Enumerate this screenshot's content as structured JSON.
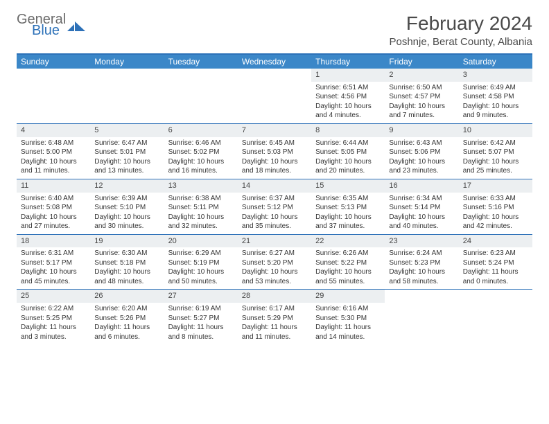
{
  "brand": {
    "general": "General",
    "blue": "Blue"
  },
  "title": "February 2024",
  "location": "Poshnje, Berat County, Albania",
  "colors": {
    "header_bar": "#3b87c8",
    "accent": "#2d71b8",
    "daynum_bg": "#eceff1",
    "text": "#333333",
    "title_text": "#4a4a4a",
    "logo_gray": "#6b6b6b"
  },
  "dow": [
    "Sunday",
    "Monday",
    "Tuesday",
    "Wednesday",
    "Thursday",
    "Friday",
    "Saturday"
  ],
  "weeks": [
    [
      null,
      null,
      null,
      null,
      {
        "d": "1",
        "sr": "Sunrise: 6:51 AM",
        "ss": "Sunset: 4:56 PM",
        "dl1": "Daylight: 10 hours",
        "dl2": "and 4 minutes."
      },
      {
        "d": "2",
        "sr": "Sunrise: 6:50 AM",
        "ss": "Sunset: 4:57 PM",
        "dl1": "Daylight: 10 hours",
        "dl2": "and 7 minutes."
      },
      {
        "d": "3",
        "sr": "Sunrise: 6:49 AM",
        "ss": "Sunset: 4:58 PM",
        "dl1": "Daylight: 10 hours",
        "dl2": "and 9 minutes."
      }
    ],
    [
      {
        "d": "4",
        "sr": "Sunrise: 6:48 AM",
        "ss": "Sunset: 5:00 PM",
        "dl1": "Daylight: 10 hours",
        "dl2": "and 11 minutes."
      },
      {
        "d": "5",
        "sr": "Sunrise: 6:47 AM",
        "ss": "Sunset: 5:01 PM",
        "dl1": "Daylight: 10 hours",
        "dl2": "and 13 minutes."
      },
      {
        "d": "6",
        "sr": "Sunrise: 6:46 AM",
        "ss": "Sunset: 5:02 PM",
        "dl1": "Daylight: 10 hours",
        "dl2": "and 16 minutes."
      },
      {
        "d": "7",
        "sr": "Sunrise: 6:45 AM",
        "ss": "Sunset: 5:03 PM",
        "dl1": "Daylight: 10 hours",
        "dl2": "and 18 minutes."
      },
      {
        "d": "8",
        "sr": "Sunrise: 6:44 AM",
        "ss": "Sunset: 5:05 PM",
        "dl1": "Daylight: 10 hours",
        "dl2": "and 20 minutes."
      },
      {
        "d": "9",
        "sr": "Sunrise: 6:43 AM",
        "ss": "Sunset: 5:06 PM",
        "dl1": "Daylight: 10 hours",
        "dl2": "and 23 minutes."
      },
      {
        "d": "10",
        "sr": "Sunrise: 6:42 AM",
        "ss": "Sunset: 5:07 PM",
        "dl1": "Daylight: 10 hours",
        "dl2": "and 25 minutes."
      }
    ],
    [
      {
        "d": "11",
        "sr": "Sunrise: 6:40 AM",
        "ss": "Sunset: 5:08 PM",
        "dl1": "Daylight: 10 hours",
        "dl2": "and 27 minutes."
      },
      {
        "d": "12",
        "sr": "Sunrise: 6:39 AM",
        "ss": "Sunset: 5:10 PM",
        "dl1": "Daylight: 10 hours",
        "dl2": "and 30 minutes."
      },
      {
        "d": "13",
        "sr": "Sunrise: 6:38 AM",
        "ss": "Sunset: 5:11 PM",
        "dl1": "Daylight: 10 hours",
        "dl2": "and 32 minutes."
      },
      {
        "d": "14",
        "sr": "Sunrise: 6:37 AM",
        "ss": "Sunset: 5:12 PM",
        "dl1": "Daylight: 10 hours",
        "dl2": "and 35 minutes."
      },
      {
        "d": "15",
        "sr": "Sunrise: 6:35 AM",
        "ss": "Sunset: 5:13 PM",
        "dl1": "Daylight: 10 hours",
        "dl2": "and 37 minutes."
      },
      {
        "d": "16",
        "sr": "Sunrise: 6:34 AM",
        "ss": "Sunset: 5:14 PM",
        "dl1": "Daylight: 10 hours",
        "dl2": "and 40 minutes."
      },
      {
        "d": "17",
        "sr": "Sunrise: 6:33 AM",
        "ss": "Sunset: 5:16 PM",
        "dl1": "Daylight: 10 hours",
        "dl2": "and 42 minutes."
      }
    ],
    [
      {
        "d": "18",
        "sr": "Sunrise: 6:31 AM",
        "ss": "Sunset: 5:17 PM",
        "dl1": "Daylight: 10 hours",
        "dl2": "and 45 minutes."
      },
      {
        "d": "19",
        "sr": "Sunrise: 6:30 AM",
        "ss": "Sunset: 5:18 PM",
        "dl1": "Daylight: 10 hours",
        "dl2": "and 48 minutes."
      },
      {
        "d": "20",
        "sr": "Sunrise: 6:29 AM",
        "ss": "Sunset: 5:19 PM",
        "dl1": "Daylight: 10 hours",
        "dl2": "and 50 minutes."
      },
      {
        "d": "21",
        "sr": "Sunrise: 6:27 AM",
        "ss": "Sunset: 5:20 PM",
        "dl1": "Daylight: 10 hours",
        "dl2": "and 53 minutes."
      },
      {
        "d": "22",
        "sr": "Sunrise: 6:26 AM",
        "ss": "Sunset: 5:22 PM",
        "dl1": "Daylight: 10 hours",
        "dl2": "and 55 minutes."
      },
      {
        "d": "23",
        "sr": "Sunrise: 6:24 AM",
        "ss": "Sunset: 5:23 PM",
        "dl1": "Daylight: 10 hours",
        "dl2": "and 58 minutes."
      },
      {
        "d": "24",
        "sr": "Sunrise: 6:23 AM",
        "ss": "Sunset: 5:24 PM",
        "dl1": "Daylight: 11 hours",
        "dl2": "and 0 minutes."
      }
    ],
    [
      {
        "d": "25",
        "sr": "Sunrise: 6:22 AM",
        "ss": "Sunset: 5:25 PM",
        "dl1": "Daylight: 11 hours",
        "dl2": "and 3 minutes."
      },
      {
        "d": "26",
        "sr": "Sunrise: 6:20 AM",
        "ss": "Sunset: 5:26 PM",
        "dl1": "Daylight: 11 hours",
        "dl2": "and 6 minutes."
      },
      {
        "d": "27",
        "sr": "Sunrise: 6:19 AM",
        "ss": "Sunset: 5:27 PM",
        "dl1": "Daylight: 11 hours",
        "dl2": "and 8 minutes."
      },
      {
        "d": "28",
        "sr": "Sunrise: 6:17 AM",
        "ss": "Sunset: 5:29 PM",
        "dl1": "Daylight: 11 hours",
        "dl2": "and 11 minutes."
      },
      {
        "d": "29",
        "sr": "Sunrise: 6:16 AM",
        "ss": "Sunset: 5:30 PM",
        "dl1": "Daylight: 11 hours",
        "dl2": "and 14 minutes."
      },
      null,
      null
    ]
  ]
}
